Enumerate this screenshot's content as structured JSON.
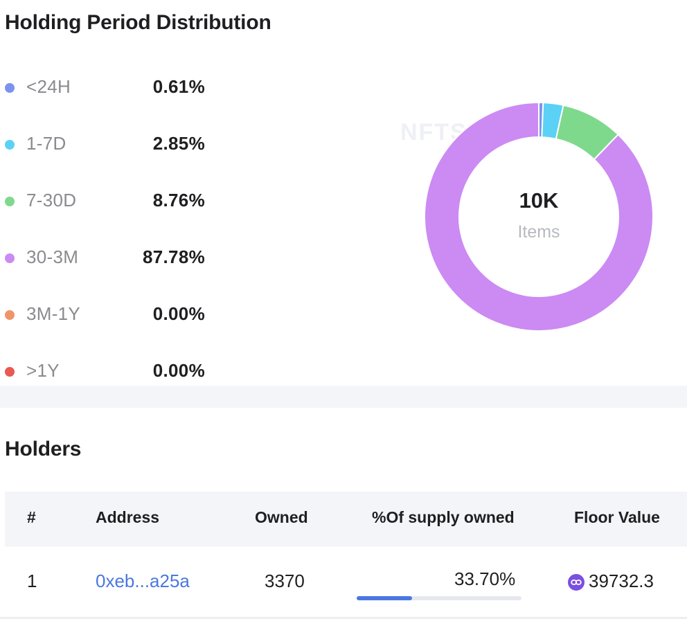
{
  "holding_period": {
    "title": "Holding Period Distribution",
    "legend": [
      {
        "label": "<24H",
        "value": "0.61%",
        "percent": 0.61,
        "color": "#7b93ec"
      },
      {
        "label": "1-7D",
        "value": "2.85%",
        "percent": 2.85,
        "color": "#5bd1f5"
      },
      {
        "label": "7-30D",
        "value": "8.76%",
        "percent": 8.76,
        "color": "#7fd98c"
      },
      {
        "label": "30-3M",
        "value": "87.78%",
        "percent": 87.78,
        "color": "#cc8af3"
      },
      {
        "label": "3M-1Y",
        "value": "0.00%",
        "percent": 0.0,
        "color": "#f0956a"
      },
      {
        "label": ">1Y",
        "value": "0.00%",
        "percent": 0.0,
        "color": "#e85a52"
      }
    ],
    "watermark": "NFTSCAN",
    "center_value": "10K",
    "center_label": "Items"
  },
  "holders": {
    "title": "Holders",
    "columns": {
      "index": "#",
      "address": "Address",
      "owned": "Owned",
      "supply": "%Of supply owned",
      "floor": "Floor Value"
    },
    "rows": [
      {
        "index": "1",
        "address": "0xeb...a25a",
        "owned": "3370",
        "supply": "33.70%",
        "supply_fraction": 0.337,
        "floor": "39732.3"
      }
    ]
  },
  "icons": {
    "token": "polygon-token-icon"
  }
}
